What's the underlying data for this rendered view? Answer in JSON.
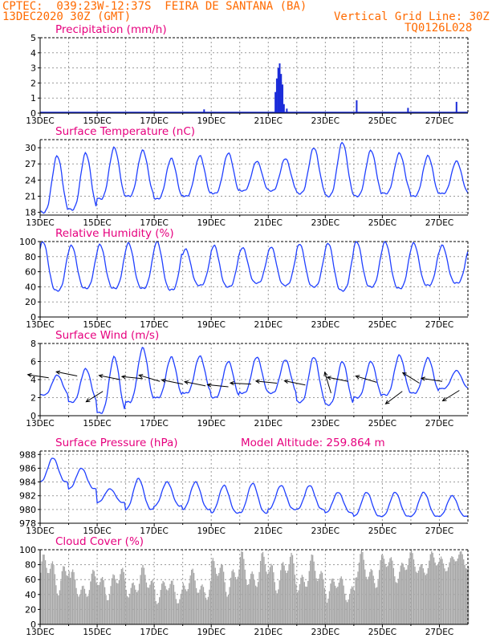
{
  "header": {
    "station": "CPTEC:  039:23W-12:37S  FEIRA DE SANTANA (BA)",
    "date": "13DEC2020 30Z (GMT)",
    "grid_note": "Vertical Grid Line: 30Z",
    "run_id": "TQ0126L028"
  },
  "colors": {
    "header": "#ff6a00",
    "title": "#e6007e",
    "line": "#2040ff",
    "bar": "#1a2bd9",
    "cloud": "#a6a6a6",
    "arrow": "#000000",
    "grid": "#9a9a9a"
  },
  "x_tick_labels": [
    "13DEC",
    "15DEC",
    "17DEC",
    "19DEC",
    "21DEC",
    "23DEC",
    "25DEC",
    "27DEC"
  ],
  "chart_data": [
    {
      "type": "bar",
      "title": "Precipitation (mm/h)",
      "ylim": [
        0,
        5
      ],
      "yticks": [
        "0",
        "1",
        "2",
        "3",
        "4",
        "5"
      ],
      "grid": true,
      "values": [
        {
          "day": 5.75,
          "v": 0.25
        },
        {
          "day": 8.25,
          "v": 1.4
        },
        {
          "day": 8.3,
          "v": 2.3
        },
        {
          "day": 8.35,
          "v": 3.0
        },
        {
          "day": 8.4,
          "v": 3.3
        },
        {
          "day": 8.45,
          "v": 2.6
        },
        {
          "day": 8.5,
          "v": 1.9
        },
        {
          "day": 8.55,
          "v": 0.6
        },
        {
          "day": 8.65,
          "v": 0.3
        },
        {
          "day": 11.1,
          "v": 0.85
        },
        {
          "day": 12.9,
          "v": 0.35
        },
        {
          "day": 14.6,
          "v": 0.75
        }
      ]
    },
    {
      "type": "line",
      "title": "Surface Temperature (nC)",
      "ylim": [
        17.5,
        31.5
      ],
      "yticks": [
        "18",
        "21",
        "24",
        "27",
        "30"
      ],
      "grid": true,
      "diurnal": [
        {
          "min": 18.0,
          "max": 28.5
        },
        {
          "min": 18.5,
          "max": 29.0
        },
        {
          "min": 20.5,
          "max": 30.0
        },
        {
          "min": 21.0,
          "max": 29.5
        },
        {
          "min": 20.5,
          "max": 28.0
        },
        {
          "min": 21.0,
          "max": 28.5
        },
        {
          "min": 21.5,
          "max": 29.0
        },
        {
          "min": 22.0,
          "max": 27.5
        },
        {
          "min": 22.0,
          "max": 28.0
        },
        {
          "min": 21.5,
          "max": 30.0
        },
        {
          "min": 21.0,
          "max": 31.0
        },
        {
          "min": 21.0,
          "max": 29.5
        },
        {
          "min": 21.5,
          "max": 29.0
        },
        {
          "min": 21.0,
          "max": 28.5
        },
        {
          "min": 21.5,
          "max": 27.5
        }
      ]
    },
    {
      "type": "line",
      "title": "Relative Humidity (%)",
      "ylim": [
        0,
        100
      ],
      "yticks": [
        "0",
        "20",
        "40",
        "60",
        "80",
        "100"
      ],
      "grid": true,
      "diurnal": [
        {
          "min": 35,
          "max": 100
        },
        {
          "min": 38,
          "max": 95
        },
        {
          "min": 38,
          "max": 96
        },
        {
          "min": 38,
          "max": 98
        },
        {
          "min": 36,
          "max": 100
        },
        {
          "min": 42,
          "max": 90
        },
        {
          "min": 40,
          "max": 95
        },
        {
          "min": 45,
          "max": 92
        },
        {
          "min": 42,
          "max": 93
        },
        {
          "min": 40,
          "max": 97
        },
        {
          "min": 35,
          "max": 98
        },
        {
          "min": 40,
          "max": 100
        },
        {
          "min": 38,
          "max": 100
        },
        {
          "min": 42,
          "max": 98
        },
        {
          "min": 45,
          "max": 95
        }
      ]
    },
    {
      "type": "line",
      "title": "Surface Wind (m/s)",
      "ylim": [
        0,
        8
      ],
      "yticks": [
        "0",
        "2",
        "4",
        "6",
        "8"
      ],
      "grid": true,
      "diurnal": [
        {
          "min": 2.3,
          "max": 4.5
        },
        {
          "min": 1.5,
          "max": 5.2
        },
        {
          "min": 0.3,
          "max": 6.5
        },
        {
          "min": 1.5,
          "max": 7.5
        },
        {
          "min": 2.0,
          "max": 6.5
        },
        {
          "min": 2.5,
          "max": 6.6
        },
        {
          "min": 2.0,
          "max": 6.0
        },
        {
          "min": 2.5,
          "max": 6.5
        },
        {
          "min": 2.5,
          "max": 6.2
        },
        {
          "min": 1.5,
          "max": 6.5
        },
        {
          "min": 1.2,
          "max": 6.0
        },
        {
          "min": 2.0,
          "max": 6.0
        },
        {
          "min": 2.3,
          "max": 6.7
        },
        {
          "min": 2.5,
          "max": 6.4
        },
        {
          "min": 3.0,
          "max": 5.0
        }
      ],
      "wind_vectors": [
        {
          "day": 0.3,
          "speed": 4.2,
          "u": -1.0,
          "v": 0.15
        },
        {
          "day": 1.3,
          "speed": 4.4,
          "u": -1.0,
          "v": 0.2
        },
        {
          "day": 2.2,
          "speed": 2.7,
          "u": -0.8,
          "v": -0.5
        },
        {
          "day": 2.8,
          "speed": 4.0,
          "u": -1.0,
          "v": 0.2
        },
        {
          "day": 3.6,
          "speed": 4.1,
          "u": -1.0,
          "v": 0.1
        },
        {
          "day": 4.2,
          "speed": 3.8,
          "u": -1.0,
          "v": 0.3
        },
        {
          "day": 5.0,
          "speed": 3.5,
          "u": -1.0,
          "v": 0.2
        },
        {
          "day": 5.8,
          "speed": 3.3,
          "u": -1.0,
          "v": 0.2
        },
        {
          "day": 6.6,
          "speed": 3.2,
          "u": -1.0,
          "v": 0.1
        },
        {
          "day": 7.4,
          "speed": 3.5,
          "u": -1.0,
          "v": 0.05
        },
        {
          "day": 8.3,
          "speed": 3.6,
          "u": -1.0,
          "v": 0.1
        },
        {
          "day": 9.3,
          "speed": 3.4,
          "u": -1.0,
          "v": 0.2
        },
        {
          "day": 10.2,
          "speed": 2.5,
          "u": -0.3,
          "v": 1.0
        },
        {
          "day": 10.8,
          "speed": 3.8,
          "u": -1.0,
          "v": 0.2
        },
        {
          "day": 11.8,
          "speed": 3.7,
          "u": -1.0,
          "v": 0.3
        },
        {
          "day": 12.7,
          "speed": 2.7,
          "u": -0.8,
          "v": -0.6
        },
        {
          "day": 13.3,
          "speed": 3.6,
          "u": -0.8,
          "v": 0.5
        },
        {
          "day": 14.1,
          "speed": 3.8,
          "u": -1.0,
          "v": 0.15
        },
        {
          "day": 14.7,
          "speed": 2.8,
          "u": -0.8,
          "v": -0.5
        }
      ]
    },
    {
      "type": "line",
      "title": "Surface Pressure (hPa)",
      "annotation": "Model Altitude: 259.864 m",
      "ylim": [
        978,
        988.5
      ],
      "yticks": [
        "978",
        "980",
        "982",
        "984",
        "986",
        "988"
      ],
      "grid": true,
      "diurnal": [
        {
          "min": 984.0,
          "max": 987.5
        },
        {
          "min": 983.0,
          "max": 986.0
        },
        {
          "min": 981.0,
          "max": 983.0
        },
        {
          "min": 980.0,
          "max": 984.5
        },
        {
          "min": 980.5,
          "max": 984.0
        },
        {
          "min": 980.0,
          "max": 984.0
        },
        {
          "min": 979.5,
          "max": 983.5
        },
        {
          "min": 979.5,
          "max": 983.8
        },
        {
          "min": 980.0,
          "max": 983.5
        },
        {
          "min": 980.0,
          "max": 983.5
        },
        {
          "min": 979.5,
          "max": 982.5
        },
        {
          "min": 979.0,
          "max": 982.5
        },
        {
          "min": 979.0,
          "max": 982.5
        },
        {
          "min": 979.0,
          "max": 982.5
        },
        {
          "min": 979.0,
          "max": 982.0
        }
      ]
    },
    {
      "type": "area",
      "title": "Cloud Cover (%)",
      "ylim": [
        0,
        100
      ],
      "yticks": [
        "0",
        "20",
        "40",
        "60",
        "80",
        "100"
      ],
      "grid": true,
      "daily": [
        {
          "min": 5,
          "max": 100
        },
        {
          "min": 5,
          "max": 75
        },
        {
          "min": 5,
          "max": 80
        },
        {
          "min": 5,
          "max": 80
        },
        {
          "min": 5,
          "max": 65
        },
        {
          "min": 5,
          "max": 75
        },
        {
          "min": 5,
          "max": 95
        },
        {
          "min": 10,
          "max": 100
        },
        {
          "min": 10,
          "max": 100
        },
        {
          "min": 5,
          "max": 95
        },
        {
          "min": 5,
          "max": 70
        },
        {
          "min": 15,
          "max": 100
        },
        {
          "min": 30,
          "max": 100
        },
        {
          "min": 40,
          "max": 100
        },
        {
          "min": 55,
          "max": 100
        }
      ]
    }
  ]
}
